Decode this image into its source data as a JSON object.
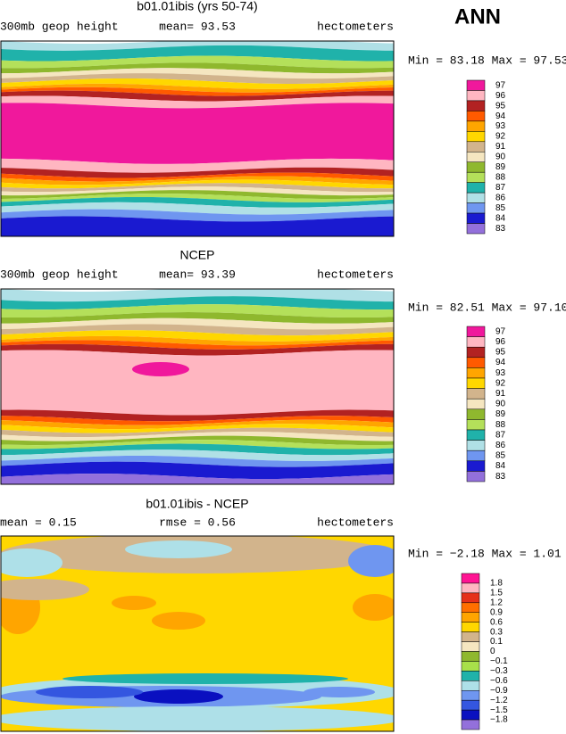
{
  "header": {
    "corner_label": "ANN"
  },
  "panels": [
    {
      "title": "b01.01ibis (yrs 50-74)",
      "left": "300mb geop height",
      "center": "mean=  93.53",
      "right": "hectometers",
      "range": "Min =  83.18 Max =  97.53",
      "colorbar": {
        "labels": [
          "97",
          "96",
          "95",
          "94",
          "93",
          "92",
          "91",
          "90",
          "89",
          "88",
          "87",
          "86",
          "85",
          "84",
          "83"
        ],
        "colors": [
          "#f0189c",
          "#ffb6c1",
          "#b22222",
          "#ff5a00",
          "#ffa500",
          "#ffd700",
          "#d2b48c",
          "#f5e6c0",
          "#8fb82e",
          "#b4e05a",
          "#20b2aa",
          "#b0e0e6",
          "#6f96f0",
          "#1a1ad0",
          "#9370db"
        ]
      }
    },
    {
      "title": "NCEP",
      "left": "300mb geop height",
      "center": "mean=  93.39",
      "right": "hectometers",
      "range": "Min =  82.51 Max =  97.10",
      "colorbar": {
        "labels": [
          "97",
          "96",
          "95",
          "94",
          "93",
          "92",
          "91",
          "90",
          "89",
          "88",
          "87",
          "86",
          "85",
          "84",
          "83"
        ],
        "colors": [
          "#f0189c",
          "#ffb6c1",
          "#b22222",
          "#ff5a00",
          "#ffa500",
          "#ffd700",
          "#d2b48c",
          "#f5e6c0",
          "#8fb82e",
          "#b4e05a",
          "#20b2aa",
          "#b0e0e6",
          "#6f96f0",
          "#1a1ad0",
          "#9370db"
        ]
      }
    },
    {
      "title": "b01.01ibis - NCEP",
      "left": "mean =    0.15",
      "center": "rmse =    0.56",
      "right": "hectometers",
      "range": "Min =  −2.18 Max =    1.01",
      "colorbar": {
        "labels": [
          "1.8",
          "1.5",
          "1.2",
          "0.9",
          "0.6",
          "0.3",
          "0.1",
          "0",
          "−0.1",
          "−0.3",
          "−0.6",
          "−0.9",
          "−1.2",
          "−1.5",
          "−1.8"
        ],
        "colors": [
          "#ff1493",
          "#ffb6c1",
          "#e5301a",
          "#ff6f00",
          "#ffa500",
          "#ffd700",
          "#d2b48c",
          "#f5e6c0",
          "#8fb82e",
          "#a8e04a",
          "#20b2aa",
          "#aee0e8",
          "#6f96f0",
          "#3456e0",
          "#0a10c0",
          "#9370db"
        ]
      }
    }
  ]
}
